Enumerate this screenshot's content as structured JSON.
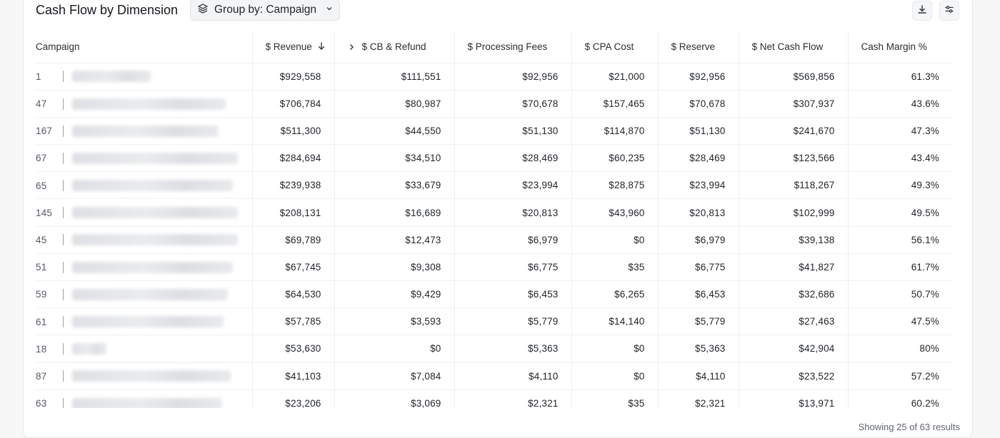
{
  "header": {
    "title": "Cash Flow by Dimension",
    "group_by_label": "Group by: Campaign"
  },
  "icons": {
    "group_by": "layers-icon",
    "group_by_chevron": "chevron-down-icon",
    "download": "download-icon",
    "settings": "sliders-icon",
    "sort": "arrow-down-icon",
    "expand": "chevron-right-icon"
  },
  "table": {
    "columns": [
      "Campaign",
      "$ Revenue",
      "$ CB & Refund",
      "$ Processing Fees",
      "$ CPA Cost",
      "$ Reserve",
      "$ Net Cash Flow",
      "Cash Margin %"
    ],
    "rows": [
      {
        "id": "1",
        "name_blur_w": 110,
        "revenue": "$929,558",
        "cb_refund": "$111,551",
        "processing_fees": "$92,956",
        "cpa_cost": "$21,000",
        "reserve": "$92,956",
        "net_cash_flow": "$569,856",
        "cash_margin": "61.3%"
      },
      {
        "id": "47",
        "name_blur_w": 215,
        "revenue": "$706,784",
        "cb_refund": "$80,987",
        "processing_fees": "$70,678",
        "cpa_cost": "$157,465",
        "reserve": "$70,678",
        "net_cash_flow": "$307,937",
        "cash_margin": "43.6%"
      },
      {
        "id": "167",
        "name_blur_w": 205,
        "revenue": "$511,300",
        "cb_refund": "$44,550",
        "processing_fees": "$51,130",
        "cpa_cost": "$114,870",
        "reserve": "$51,130",
        "net_cash_flow": "$241,670",
        "cash_margin": "47.3%"
      },
      {
        "id": "67",
        "name_blur_w": 232,
        "revenue": "$284,694",
        "cb_refund": "$34,510",
        "processing_fees": "$28,469",
        "cpa_cost": "$60,235",
        "reserve": "$28,469",
        "net_cash_flow": "$123,566",
        "cash_margin": "43.4%"
      },
      {
        "id": "65",
        "name_blur_w": 225,
        "revenue": "$239,938",
        "cb_refund": "$33,679",
        "processing_fees": "$23,994",
        "cpa_cost": "$28,875",
        "reserve": "$23,994",
        "net_cash_flow": "$118,267",
        "cash_margin": "49.3%"
      },
      {
        "id": "145",
        "name_blur_w": 232,
        "revenue": "$208,131",
        "cb_refund": "$16,689",
        "processing_fees": "$20,813",
        "cpa_cost": "$43,960",
        "reserve": "$20,813",
        "net_cash_flow": "$102,999",
        "cash_margin": "49.5%"
      },
      {
        "id": "45",
        "name_blur_w": 232,
        "revenue": "$69,789",
        "cb_refund": "$12,473",
        "processing_fees": "$6,979",
        "cpa_cost": "$0",
        "reserve": "$6,979",
        "net_cash_flow": "$39,138",
        "cash_margin": "56.1%"
      },
      {
        "id": "51",
        "name_blur_w": 225,
        "revenue": "$67,745",
        "cb_refund": "$9,308",
        "processing_fees": "$6,775",
        "cpa_cost": "$35",
        "reserve": "$6,775",
        "net_cash_flow": "$41,827",
        "cash_margin": "61.7%"
      },
      {
        "id": "59",
        "name_blur_w": 218,
        "revenue": "$64,530",
        "cb_refund": "$9,429",
        "processing_fees": "$6,453",
        "cpa_cost": "$6,265",
        "reserve": "$6,453",
        "net_cash_flow": "$32,686",
        "cash_margin": "50.7%"
      },
      {
        "id": "61",
        "name_blur_w": 212,
        "revenue": "$57,785",
        "cb_refund": "$3,593",
        "processing_fees": "$5,779",
        "cpa_cost": "$14,140",
        "reserve": "$5,779",
        "net_cash_flow": "$27,463",
        "cash_margin": "47.5%"
      },
      {
        "id": "18",
        "name_blur_w": 48,
        "revenue": "$53,630",
        "cb_refund": "$0",
        "processing_fees": "$5,363",
        "cpa_cost": "$0",
        "reserve": "$5,363",
        "net_cash_flow": "$42,904",
        "cash_margin": "80%"
      },
      {
        "id": "87",
        "name_blur_w": 222,
        "revenue": "$41,103",
        "cb_refund": "$7,084",
        "processing_fees": "$4,110",
        "cpa_cost": "$0",
        "reserve": "$4,110",
        "net_cash_flow": "$23,522",
        "cash_margin": "57.2%"
      },
      {
        "id": "63",
        "name_blur_w": 210,
        "revenue": "$23,206",
        "cb_refund": "$3,069",
        "processing_fees": "$2,321",
        "cpa_cost": "$35",
        "reserve": "$2,321",
        "net_cash_flow": "$13,971",
        "cash_margin": "60.2%"
      }
    ]
  },
  "footer": {
    "results_text": "Showing 25 of 63 results"
  }
}
